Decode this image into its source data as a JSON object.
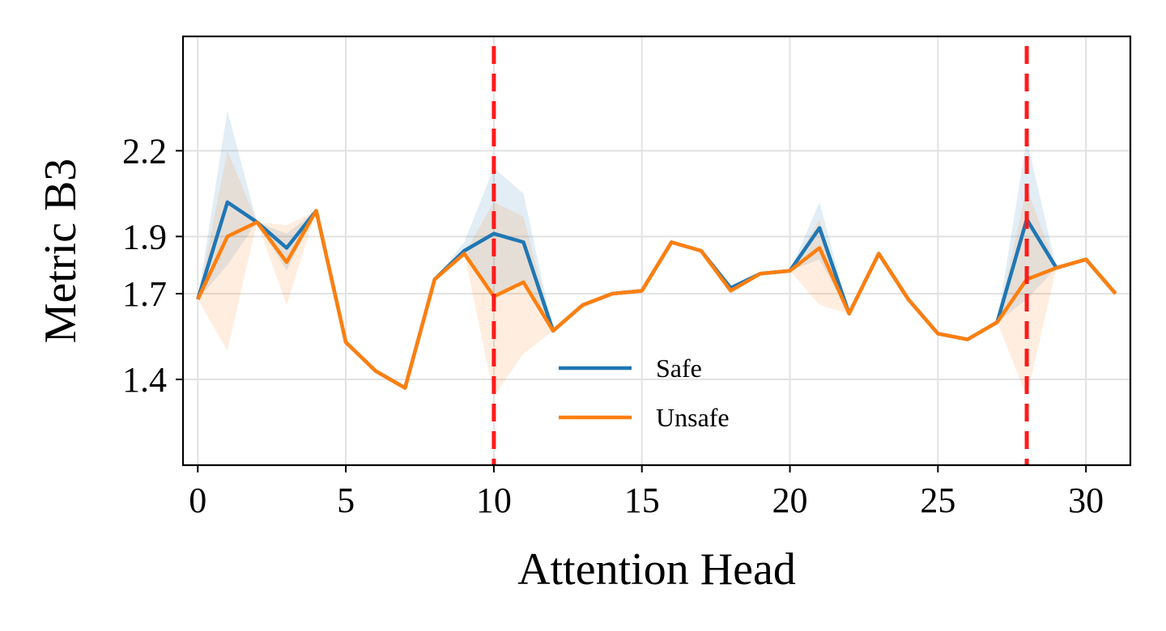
{
  "chart_data": {
    "type": "line",
    "xlabel": "Attention Head",
    "ylabel": "Metric B3",
    "xlim": [
      -0.5,
      31.5
    ],
    "ylim": [
      1.1,
      2.6
    ],
    "xticks": [
      0,
      5,
      10,
      15,
      20,
      25,
      30
    ],
    "yticks": [
      1.4,
      1.7,
      1.9,
      2.2
    ],
    "ytick_labels": [
      "1.4",
      "1.7",
      "1.9",
      "2.2"
    ],
    "grid": true,
    "legend_position": "lower-center",
    "x": [
      0,
      1,
      2,
      3,
      4,
      5,
      6,
      7,
      8,
      9,
      10,
      11,
      12,
      13,
      14,
      15,
      16,
      17,
      18,
      19,
      20,
      21,
      22,
      23,
      24,
      25,
      26,
      27,
      28,
      29,
      30,
      31
    ],
    "series": [
      {
        "name": "Safe",
        "color": "#1f77b4",
        "values": [
          1.68,
          2.02,
          1.95,
          1.86,
          1.99,
          1.53,
          1.43,
          1.37,
          1.75,
          1.85,
          1.91,
          1.88,
          1.57,
          1.66,
          1.7,
          1.71,
          1.88,
          1.85,
          1.72,
          1.77,
          1.78,
          1.93,
          1.63,
          1.84,
          1.68,
          1.56,
          1.54,
          1.6,
          1.96,
          1.79,
          1.82,
          1.7
        ],
        "band_lower": [
          1.68,
          1.8,
          1.95,
          1.78,
          1.99,
          1.53,
          1.43,
          1.37,
          1.75,
          1.85,
          1.7,
          1.73,
          1.57,
          1.66,
          1.7,
          1.71,
          1.88,
          1.85,
          1.72,
          1.77,
          1.78,
          1.82,
          1.63,
          1.84,
          1.68,
          1.56,
          1.54,
          1.6,
          1.68,
          1.79,
          1.82,
          1.7
        ],
        "band_upper": [
          1.68,
          2.34,
          1.95,
          1.91,
          1.99,
          1.53,
          1.43,
          1.37,
          1.75,
          1.88,
          2.14,
          2.05,
          1.57,
          1.66,
          1.7,
          1.71,
          1.88,
          1.85,
          1.72,
          1.77,
          1.78,
          2.02,
          1.63,
          1.84,
          1.68,
          1.56,
          1.54,
          1.6,
          2.24,
          1.79,
          1.82,
          1.7
        ]
      },
      {
        "name": "Unsafe",
        "color": "#ff7f0e",
        "values": [
          1.68,
          1.9,
          1.95,
          1.81,
          1.99,
          1.53,
          1.43,
          1.37,
          1.75,
          1.84,
          1.69,
          1.74,
          1.57,
          1.66,
          1.7,
          1.71,
          1.88,
          1.85,
          1.71,
          1.77,
          1.78,
          1.86,
          1.63,
          1.84,
          1.68,
          1.56,
          1.54,
          1.6,
          1.75,
          1.79,
          1.82,
          1.7
        ],
        "band_lower": [
          1.68,
          1.5,
          1.95,
          1.66,
          1.99,
          1.53,
          1.43,
          1.37,
          1.75,
          1.84,
          1.34,
          1.49,
          1.57,
          1.66,
          1.7,
          1.71,
          1.88,
          1.85,
          1.71,
          1.77,
          1.78,
          1.66,
          1.63,
          1.84,
          1.68,
          1.56,
          1.54,
          1.6,
          1.34,
          1.79,
          1.82,
          1.7
        ],
        "band_upper": [
          1.68,
          2.2,
          1.95,
          1.94,
          1.99,
          1.53,
          1.43,
          1.37,
          1.75,
          1.84,
          2.02,
          1.97,
          1.57,
          1.66,
          1.7,
          1.71,
          1.88,
          1.85,
          1.71,
          1.77,
          1.78,
          1.96,
          1.63,
          1.84,
          1.68,
          1.56,
          1.54,
          1.6,
          2.07,
          1.79,
          1.82,
          1.7
        ]
      }
    ],
    "vlines": [
      {
        "x": 10,
        "color": "#ff1a1a",
        "style": "dashed"
      },
      {
        "x": 28,
        "color": "#ff1a1a",
        "style": "dashed"
      }
    ]
  }
}
